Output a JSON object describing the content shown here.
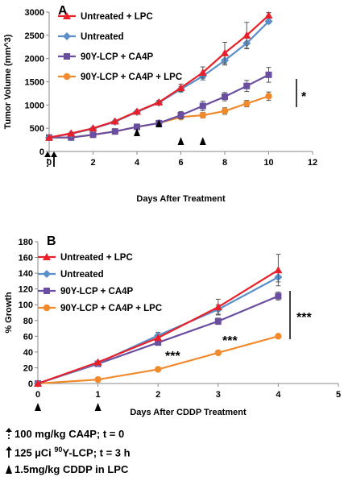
{
  "chart_data": [
    {
      "type": "line",
      "panel_letter": "A",
      "xlabel": "Days After Treatment",
      "ylabel": "Tumor Volume (mm^3)",
      "xlim": [
        0,
        12
      ],
      "ylim": [
        0,
        3000
      ],
      "xticks": [
        0,
        2,
        4,
        6,
        8,
        10,
        12
      ],
      "yticks": [
        0,
        500,
        1000,
        1500,
        2000,
        2500,
        3000
      ],
      "grid": false,
      "legend_position": "top-left",
      "series": [
        {
          "name": "Untreated + LPC",
          "color": "#e8202a",
          "marker": "triangle",
          "x": [
            0,
            1,
            2,
            3,
            4,
            5,
            6,
            7,
            8,
            9,
            10
          ],
          "y": [
            300,
            390,
            500,
            650,
            860,
            1060,
            1370,
            1700,
            2120,
            2500,
            2930
          ],
          "err": [
            0,
            0,
            0,
            0,
            0,
            40,
            80,
            120,
            230,
            280,
            60
          ]
        },
        {
          "name": "Untreated",
          "color": "#5b8fc9",
          "marker": "diamond",
          "x": [
            0,
            1,
            2,
            3,
            4,
            5,
            6,
            7,
            8,
            9,
            10
          ],
          "y": [
            300,
            380,
            490,
            640,
            850,
            1050,
            1340,
            1620,
            1960,
            2330,
            2800
          ],
          "err": [
            0,
            0,
            0,
            0,
            0,
            30,
            60,
            80,
            100,
            120,
            40
          ]
        },
        {
          "name": "90Y-LCP + CA4P",
          "color": "#6a4ea0",
          "marker": "square",
          "x": [
            0,
            1,
            2,
            3,
            4,
            5,
            6,
            7,
            8,
            9,
            10
          ],
          "y": [
            300,
            300,
            360,
            430,
            530,
            610,
            780,
            980,
            1180,
            1410,
            1650
          ],
          "err": [
            0,
            0,
            0,
            0,
            0,
            0,
            80,
            100,
            90,
            120,
            160
          ]
        },
        {
          "name": "90Y-LCP + CA4P + LPC",
          "color": "#f08a2c",
          "marker": "circle",
          "x": [
            0,
            1,
            2,
            3,
            4,
            5,
            6,
            7,
            8,
            9,
            10
          ],
          "y": [
            300,
            300,
            360,
            430,
            530,
            610,
            740,
            780,
            870,
            1030,
            1190
          ],
          "err": [
            0,
            0,
            0,
            0,
            0,
            0,
            40,
            60,
            70,
            70,
            90
          ]
        }
      ],
      "significance": "*"
    },
    {
      "type": "line",
      "panel_letter": "B",
      "xlabel": "Days After CDDP Treatment",
      "ylabel": "% Growth",
      "xlim": [
        0,
        5
      ],
      "ylim": [
        0,
        180
      ],
      "xticks": [
        0,
        1,
        2,
        3,
        4,
        5
      ],
      "yticks": [
        0,
        20,
        40,
        60,
        80,
        100,
        120,
        140,
        160,
        180
      ],
      "grid": false,
      "legend_position": "top-left",
      "series": [
        {
          "name": "Untreated + LPC",
          "color": "#e8202a",
          "marker": "triangle",
          "x": [
            0,
            1,
            2,
            3,
            4
          ],
          "y": [
            0,
            27,
            58,
            97,
            144
          ],
          "err": [
            0,
            0,
            0,
            10,
            20
          ]
        },
        {
          "name": "Untreated",
          "color": "#5b8fc9",
          "marker": "diamond",
          "x": [
            0,
            1,
            2,
            3,
            4
          ],
          "y": [
            0,
            26,
            61,
            94,
            135
          ],
          "err": [
            0,
            0,
            4,
            6,
            6
          ]
        },
        {
          "name": "90Y-LCP + CA4P",
          "color": "#6a4ea0",
          "marker": "square",
          "x": [
            0,
            1,
            2,
            3,
            4
          ],
          "y": [
            0,
            25,
            52,
            79,
            111
          ],
          "err": [
            0,
            3,
            3,
            4,
            5
          ]
        },
        {
          "name": "90Y-LCP + CA4P + LPC",
          "color": "#f08a2c",
          "marker": "circle",
          "x": [
            0,
            1,
            2,
            3,
            4
          ],
          "y": [
            0,
            5,
            18,
            39,
            60
          ],
          "err": [
            0,
            0,
            0,
            0,
            2
          ]
        }
      ],
      "significance": [
        "***",
        "***",
        "***"
      ]
    }
  ],
  "footnotes": [
    {
      "symbol": "dotted-arrow-up-icon",
      "text": "100 mg/kg CA4P; t = 0"
    },
    {
      "symbol": "arrow-up-icon",
      "text_before": "125 µCi ",
      "superscript": "90",
      "text_after": "Y-LCP; t = 3 h"
    },
    {
      "symbol": "triangle-up-icon",
      "text": "1.5mg/kg CDDP in LPC"
    }
  ]
}
